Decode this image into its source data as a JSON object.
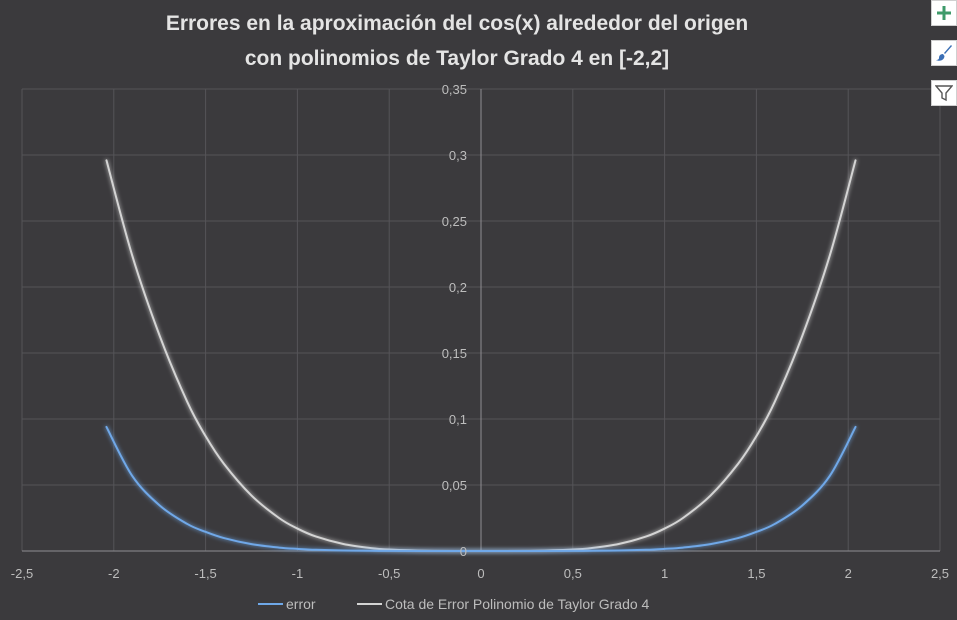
{
  "chart_data": {
    "type": "scatter",
    "title_line1": "Errores en la aproximación  del cos(x) alrededor del origen",
    "title_line2": "con polinomios de Taylor Grado  4 en [-2,2]",
    "xlim": [
      -2.5,
      2.5
    ],
    "ylim": [
      0,
      0.35
    ],
    "x_ticks": [
      -2.5,
      -2,
      -1.5,
      -1,
      -0.5,
      0,
      0.5,
      1,
      1.5,
      2,
      2.5
    ],
    "x_tick_labels": [
      "-2,5",
      "-2",
      "-1,5",
      "-1",
      "-0,5",
      "0",
      "0,5",
      "1",
      "1,5",
      "2",
      "2,5"
    ],
    "y_ticks": [
      0,
      0.05,
      0.1,
      0.15,
      0.2,
      0.25,
      0.3,
      0.35
    ],
    "y_tick_labels": [
      "0",
      "0,05",
      "0,1",
      "0,15",
      "0,2",
      "0,25",
      "0,3",
      "0,35"
    ],
    "grid": true,
    "legend_position": "bottom",
    "series": [
      {
        "name": "error",
        "color": "#6fa8e8",
        "x": [
          -2.04,
          -1.9,
          -1.75,
          -1.6,
          -1.5,
          -1.4,
          -1.25,
          -1.1,
          -1.0,
          -0.9,
          -0.75,
          -0.6,
          -0.5,
          -0.3,
          0,
          0.3,
          0.5,
          0.6,
          0.75,
          0.9,
          1.0,
          1.1,
          1.25,
          1.4,
          1.5,
          1.6,
          1.75,
          1.9,
          2.04
        ],
        "y": [
          0.094,
          0.057,
          0.0345,
          0.0205,
          0.0145,
          0.0098,
          0.0052,
          0.0026,
          0.0016,
          0.0009,
          0.0004,
          0.00015,
          7e-05,
          1e-05,
          0,
          1e-05,
          7e-05,
          0.00015,
          0.0004,
          0.0009,
          0.0016,
          0.0026,
          0.0052,
          0.0098,
          0.0145,
          0.0205,
          0.0345,
          0.057,
          0.094
        ]
      },
      {
        "name": "Cota de Error Polinomio de Taylor Grado 4",
        "color": "#d4d4d4",
        "x": [
          -2.04,
          -1.9,
          -1.75,
          -1.6,
          -1.5,
          -1.4,
          -1.25,
          -1.1,
          -1.0,
          -0.9,
          -0.75,
          -0.6,
          -0.5,
          -0.3,
          0,
          0.3,
          0.5,
          0.6,
          0.75,
          0.9,
          1.0,
          1.1,
          1.25,
          1.4,
          1.5,
          1.6,
          1.75,
          1.9,
          2.04
        ],
        "y": [
          0.296,
          0.224,
          0.163,
          0.113,
          0.087,
          0.066,
          0.042,
          0.025,
          0.017,
          0.011,
          0.0053,
          0.0022,
          0.0011,
          0.00015,
          0,
          0.00015,
          0.0011,
          0.0022,
          0.0053,
          0.011,
          0.017,
          0.025,
          0.042,
          0.066,
          0.087,
          0.113,
          0.163,
          0.224,
          0.296
        ]
      }
    ]
  },
  "ui": {
    "add_icon": "plus-icon",
    "style_icon": "brush-icon",
    "filter_icon": "filter-icon"
  }
}
